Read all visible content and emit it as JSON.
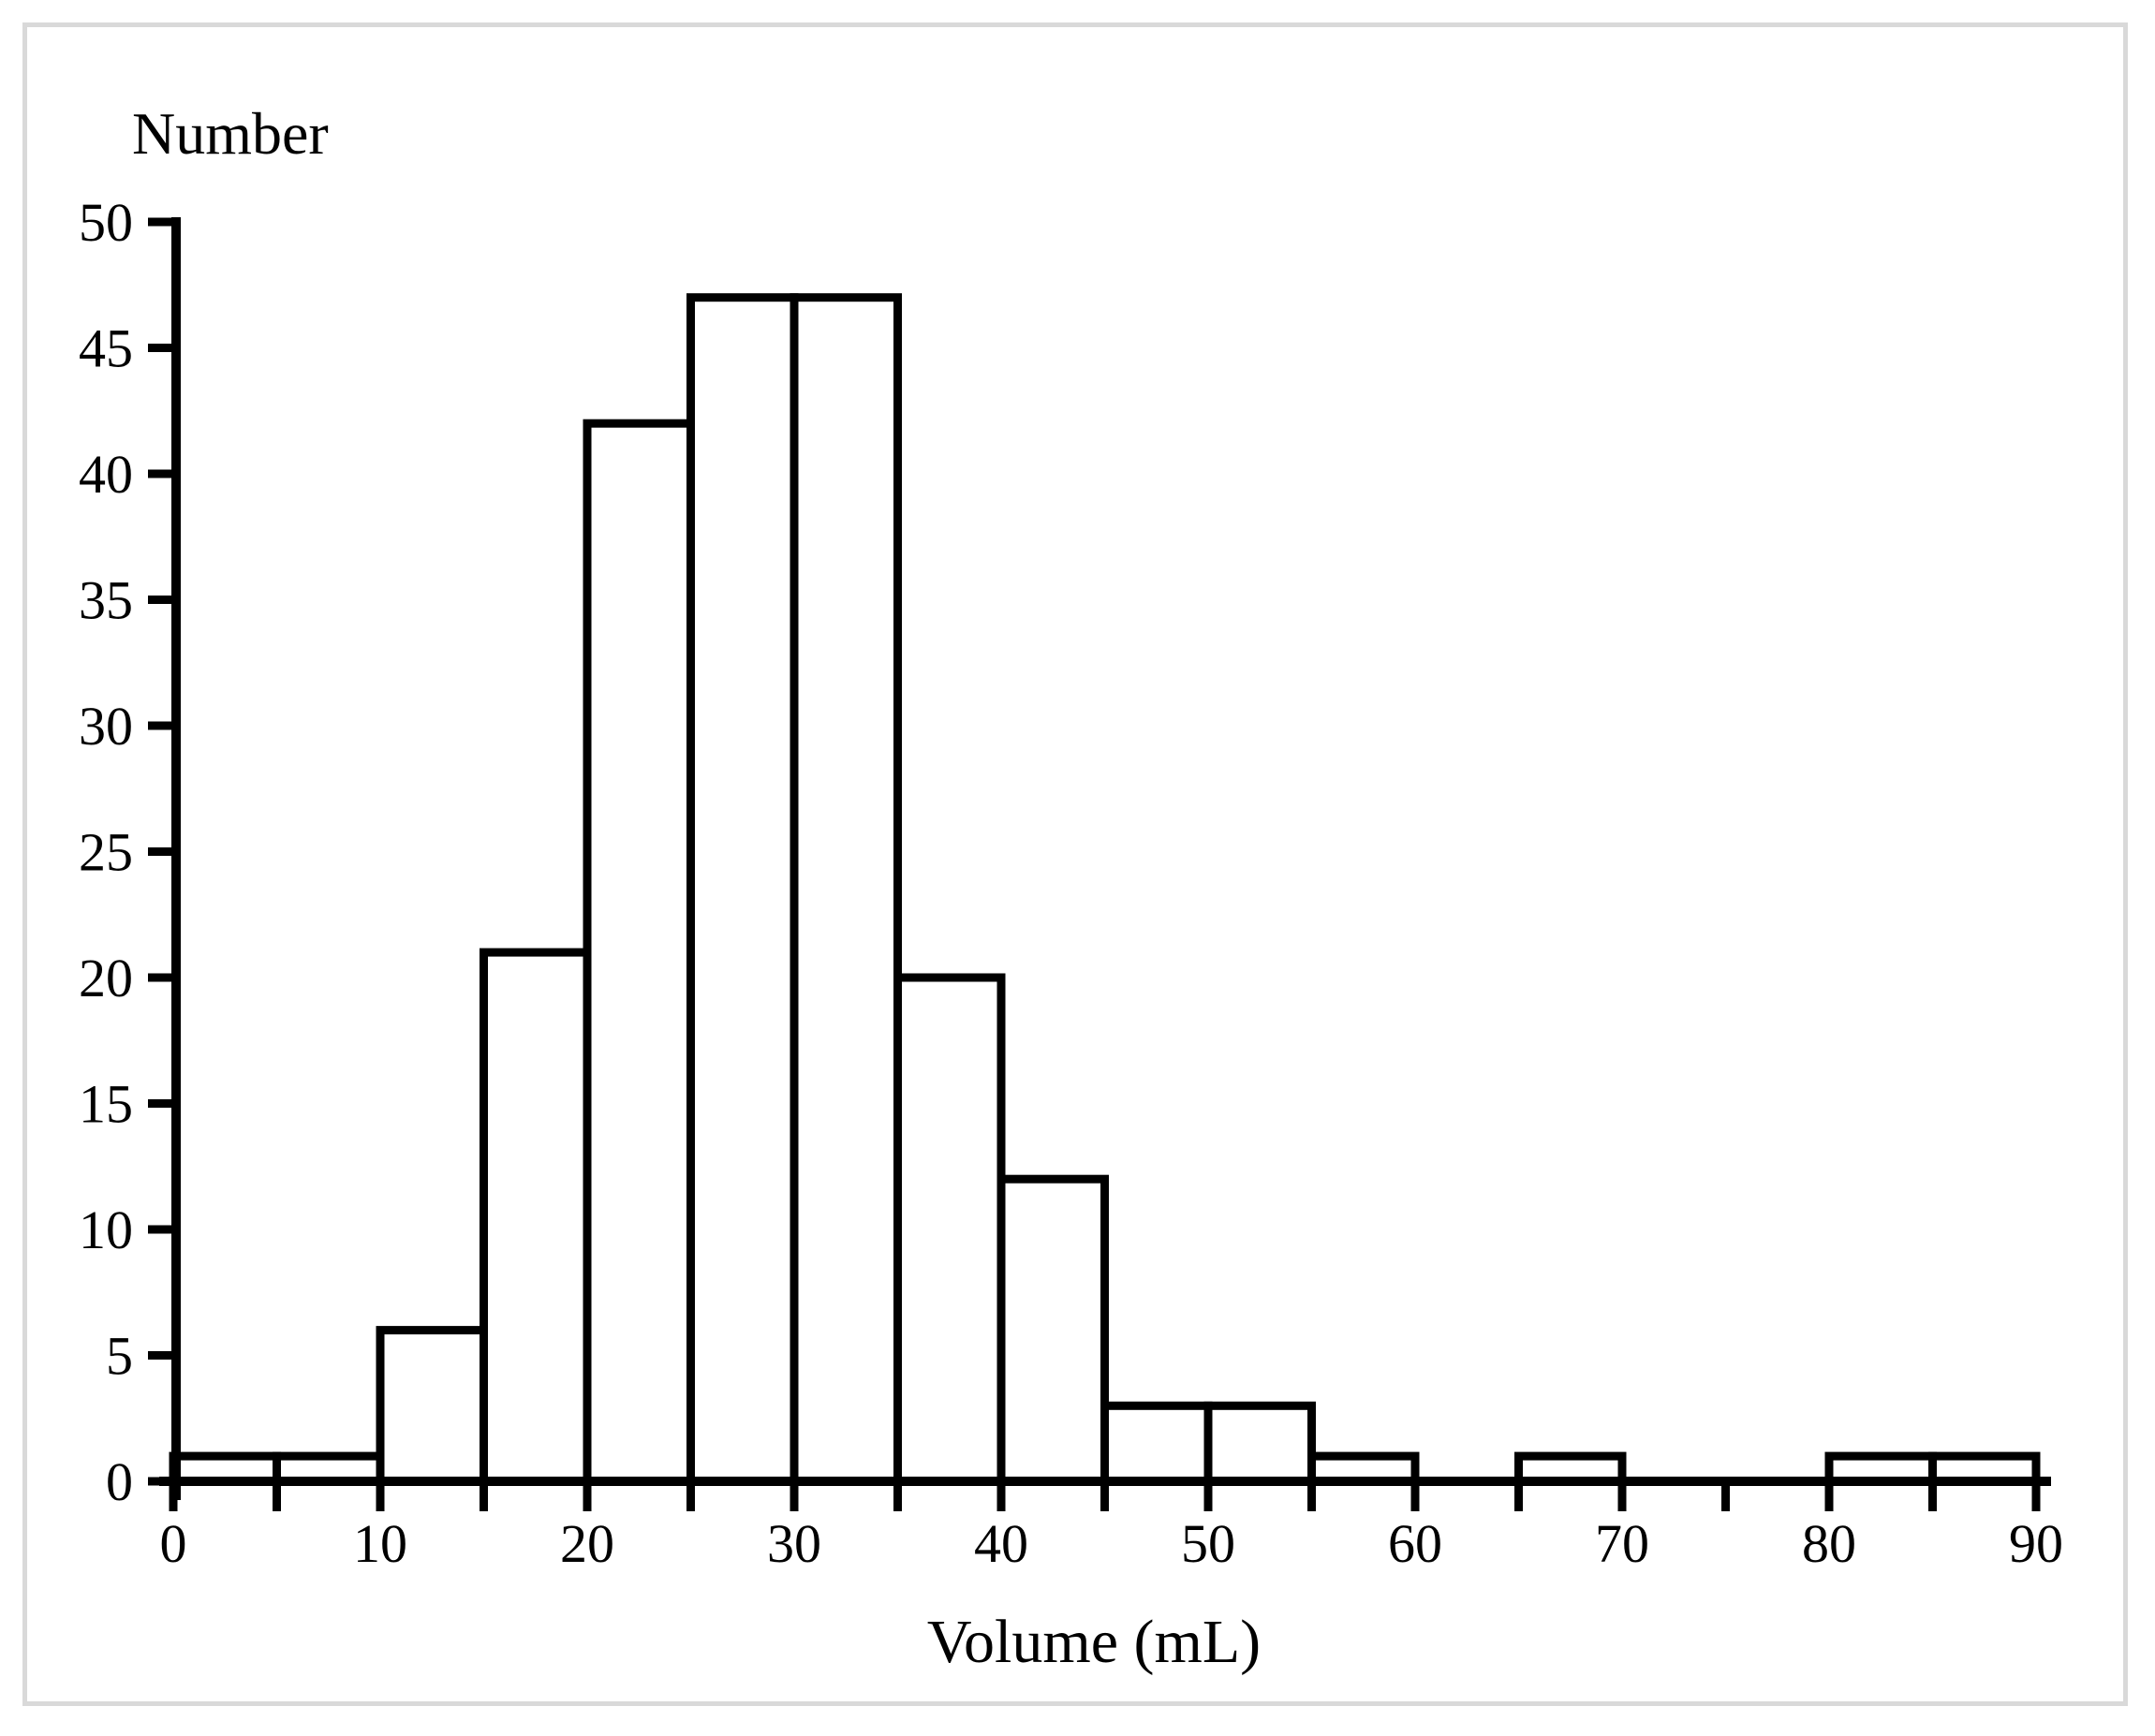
{
  "page": {
    "background_color": "#ffffff",
    "frame_border_color": "#d9d9d9"
  },
  "chart_data": {
    "type": "bar",
    "subtype": "histogram",
    "title": "",
    "ylabel": "Number",
    "xlabel": "Volume (mL)",
    "xlim": [
      0,
      90
    ],
    "ylim": [
      0,
      50
    ],
    "grid": false,
    "legend": null,
    "bar_fill": "#ffffff",
    "bar_stroke": "#000000",
    "axis_color": "#000000",
    "text_color": "#000000",
    "bin_width": 5,
    "x_minor_tick_step": 5,
    "x_major_tick_step": 10,
    "y_tick_step": 5,
    "x_tick_labels": [
      0,
      10,
      20,
      30,
      40,
      50,
      60,
      70,
      80,
      90
    ],
    "y_tick_labels": [
      0,
      5,
      10,
      15,
      20,
      25,
      30,
      35,
      40,
      45,
      50
    ],
    "categories": [
      "0-5",
      "5-10",
      "10-15",
      "15-20",
      "20-25",
      "25-30",
      "30-35",
      "35-40",
      "40-45",
      "45-50",
      "50-55",
      "55-60",
      "60-65",
      "65-70",
      "70-75",
      "75-80",
      "80-85",
      "85-90"
    ],
    "values": [
      1,
      1,
      6,
      21,
      42,
      47,
      47,
      20,
      12,
      3,
      3,
      1,
      0,
      1,
      0,
      0,
      1,
      1
    ],
    "bins": [
      {
        "x0": 0,
        "x1": 5,
        "count": 1
      },
      {
        "x0": 5,
        "x1": 10,
        "count": 1
      },
      {
        "x0": 10,
        "x1": 15,
        "count": 6
      },
      {
        "x0": 15,
        "x1": 20,
        "count": 21
      },
      {
        "x0": 20,
        "x1": 25,
        "count": 42
      },
      {
        "x0": 25,
        "x1": 30,
        "count": 47
      },
      {
        "x0": 30,
        "x1": 35,
        "count": 47
      },
      {
        "x0": 35,
        "x1": 40,
        "count": 20
      },
      {
        "x0": 40,
        "x1": 45,
        "count": 12
      },
      {
        "x0": 45,
        "x1": 50,
        "count": 3
      },
      {
        "x0": 50,
        "x1": 55,
        "count": 3
      },
      {
        "x0": 55,
        "x1": 60,
        "count": 1
      },
      {
        "x0": 60,
        "x1": 65,
        "count": 0
      },
      {
        "x0": 65,
        "x1": 70,
        "count": 1
      },
      {
        "x0": 70,
        "x1": 75,
        "count": 0
      },
      {
        "x0": 75,
        "x1": 80,
        "count": 0
      },
      {
        "x0": 80,
        "x1": 85,
        "count": 1
      },
      {
        "x0": 85,
        "x1": 90,
        "count": 1
      }
    ]
  }
}
